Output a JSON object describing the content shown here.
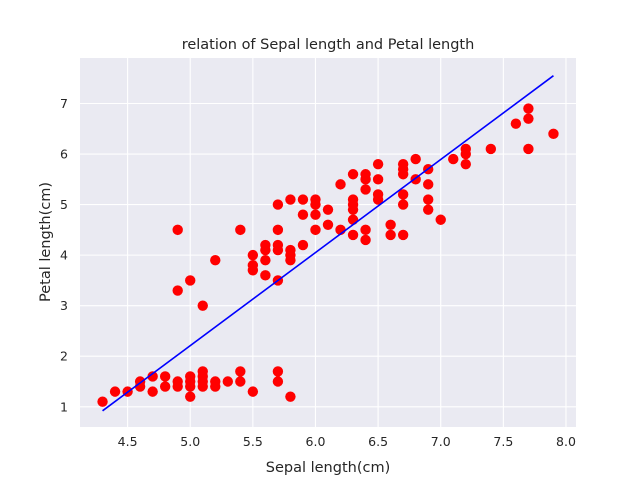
{
  "chart_data": {
    "type": "scatter",
    "title": "relation of Sepal length and Petal length",
    "xlabel": "Sepal length(cm)",
    "ylabel": "Petal length(cm)",
    "xlim": [
      4.12,
      8.08
    ],
    "ylim": [
      0.6,
      7.9
    ],
    "xticks": [
      4.5,
      5.0,
      5.5,
      6.0,
      6.5,
      7.0,
      7.5,
      8.0
    ],
    "xtick_labels": [
      "4.5",
      "5.0",
      "5.5",
      "6.0",
      "6.5",
      "7.0",
      "7.5",
      "8.0"
    ],
    "yticks": [
      1,
      2,
      3,
      4,
      5,
      6,
      7
    ],
    "ytick_labels": [
      "1",
      "2",
      "3",
      "4",
      "5",
      "6",
      "7"
    ],
    "grid": true,
    "background_color": "#eaeaf2",
    "point_color": "#ff0000",
    "line_color": "#0000ff",
    "points": [
      [
        4.3,
        1.1
      ],
      [
        4.4,
        1.3
      ],
      [
        4.5,
        1.3
      ],
      [
        4.6,
        1.5
      ],
      [
        4.6,
        1.4
      ],
      [
        4.7,
        1.6
      ],
      [
        4.7,
        1.3
      ],
      [
        4.8,
        1.6
      ],
      [
        4.8,
        1.4
      ],
      [
        4.9,
        1.5
      ],
      [
        4.9,
        1.4
      ],
      [
        5.0,
        1.6
      ],
      [
        5.0,
        1.5
      ],
      [
        5.0,
        1.4
      ],
      [
        5.0,
        1.2
      ],
      [
        5.1,
        1.7
      ],
      [
        5.1,
        1.6
      ],
      [
        5.1,
        1.5
      ],
      [
        5.1,
        1.4
      ],
      [
        5.2,
        1.5
      ],
      [
        5.2,
        1.4
      ],
      [
        5.3,
        1.5
      ],
      [
        5.4,
        1.7
      ],
      [
        5.4,
        1.5
      ],
      [
        5.5,
        1.3
      ],
      [
        5.7,
        1.7
      ],
      [
        5.7,
        1.5
      ],
      [
        5.8,
        1.2
      ],
      [
        4.9,
        4.5
      ],
      [
        4.9,
        3.3
      ],
      [
        5.0,
        3.5
      ],
      [
        5.1,
        3.0
      ],
      [
        5.2,
        3.9
      ],
      [
        5.4,
        4.5
      ],
      [
        5.5,
        4.0
      ],
      [
        5.5,
        3.8
      ],
      [
        5.5,
        3.7
      ],
      [
        5.6,
        4.2
      ],
      [
        5.6,
        4.1
      ],
      [
        5.6,
        3.9
      ],
      [
        5.6,
        3.6
      ],
      [
        5.7,
        4.5
      ],
      [
        5.7,
        4.2
      ],
      [
        5.7,
        4.1
      ],
      [
        5.7,
        3.5
      ],
      [
        5.7,
        5.0
      ],
      [
        5.8,
        5.1
      ],
      [
        5.8,
        4.1
      ],
      [
        5.8,
        4.0
      ],
      [
        5.8,
        3.9
      ],
      [
        5.9,
        5.1
      ],
      [
        5.9,
        4.8
      ],
      [
        5.9,
        4.2
      ],
      [
        6.0,
        5.1
      ],
      [
        6.0,
        5.0
      ],
      [
        6.0,
        4.8
      ],
      [
        6.0,
        4.5
      ],
      [
        6.1,
        4.9
      ],
      [
        6.1,
        4.6
      ],
      [
        6.2,
        5.4
      ],
      [
        6.2,
        4.5
      ],
      [
        6.3,
        5.6
      ],
      [
        6.3,
        5.1
      ],
      [
        6.3,
        5.0
      ],
      [
        6.3,
        4.9
      ],
      [
        6.3,
        4.7
      ],
      [
        6.3,
        4.4
      ],
      [
        6.4,
        5.6
      ],
      [
        6.4,
        5.5
      ],
      [
        6.4,
        5.3
      ],
      [
        6.4,
        4.5
      ],
      [
        6.4,
        4.3
      ],
      [
        6.5,
        5.8
      ],
      [
        6.5,
        5.5
      ],
      [
        6.5,
        5.2
      ],
      [
        6.5,
        5.1
      ],
      [
        6.6,
        4.6
      ],
      [
        6.6,
        4.4
      ],
      [
        6.7,
        5.8
      ],
      [
        6.7,
        5.7
      ],
      [
        6.7,
        5.6
      ],
      [
        6.7,
        5.2
      ],
      [
        6.7,
        5.0
      ],
      [
        6.7,
        4.4
      ],
      [
        6.8,
        5.9
      ],
      [
        6.8,
        5.5
      ],
      [
        6.9,
        5.7
      ],
      [
        6.9,
        5.4
      ],
      [
        6.9,
        5.1
      ],
      [
        6.9,
        4.9
      ],
      [
        7.0,
        4.7
      ],
      [
        7.1,
        5.9
      ],
      [
        7.2,
        6.1
      ],
      [
        7.2,
        6.0
      ],
      [
        7.2,
        5.8
      ],
      [
        7.4,
        6.1
      ],
      [
        7.6,
        6.6
      ],
      [
        7.7,
        6.9
      ],
      [
        7.7,
        6.7
      ],
      [
        7.7,
        6.1
      ],
      [
        7.9,
        6.4
      ]
    ],
    "fit_line": {
      "x": [
        4.3,
        7.9
      ],
      "y": [
        0.92,
        7.55
      ]
    }
  }
}
